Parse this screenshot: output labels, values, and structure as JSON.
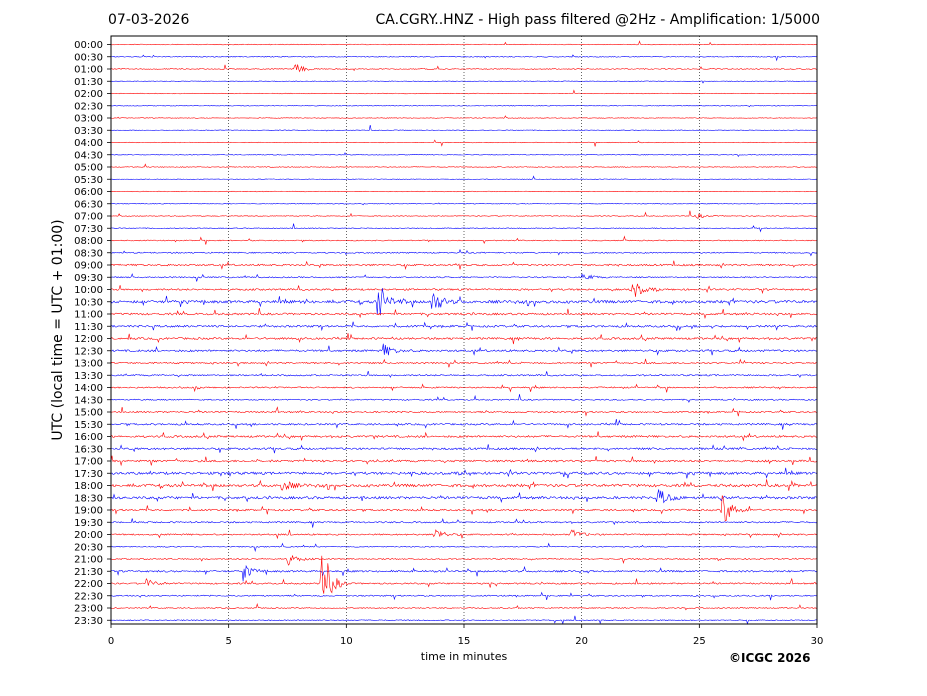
{
  "header": {
    "date": "07-03-2026",
    "title": "CA.CGRY..HNZ - High pass filtered @2Hz - Amplification: 1/5000"
  },
  "credit": "©ICGC 2026",
  "chart_data": {
    "type": "line",
    "title": "CA.CGRY..HNZ - High pass filtered @2Hz - Amplification: 1/5000",
    "xlabel": "time in minutes",
    "ylabel": "UTC (local time = UTC + 01:00)",
    "xlim": [
      0,
      30
    ],
    "x_ticks": [
      0,
      5,
      10,
      15,
      20,
      25,
      30
    ],
    "row_labels": [
      "00:00",
      "00:30",
      "01:00",
      "01:30",
      "02:00",
      "02:30",
      "03:00",
      "03:30",
      "04:00",
      "04:30",
      "05:00",
      "05:30",
      "06:00",
      "06:30",
      "07:00",
      "07:30",
      "08:00",
      "08:30",
      "09:00",
      "09:30",
      "10:00",
      "10:30",
      "11:00",
      "11:30",
      "12:00",
      "12:30",
      "13:00",
      "13:30",
      "14:00",
      "14:30",
      "15:00",
      "15:30",
      "16:00",
      "16:30",
      "17:00",
      "17:30",
      "18:00",
      "18:30",
      "19:00",
      "19:30",
      "20:00",
      "20:30",
      "21:00",
      "21:30",
      "22:00",
      "22:30",
      "23:00",
      "23:30"
    ],
    "trace_colors": [
      "#ff0000",
      "#0000ff"
    ],
    "row_activity": [
      0.1,
      0.15,
      0.15,
      0.05,
      0.05,
      0.05,
      0.05,
      0.05,
      0.05,
      0.1,
      0.1,
      0.05,
      0.05,
      0.05,
      0.1,
      0.15,
      0.2,
      0.3,
      0.5,
      0.3,
      0.5,
      0.9,
      0.6,
      0.6,
      0.6,
      0.6,
      0.4,
      0.4,
      0.35,
      0.3,
      0.4,
      0.5,
      0.6,
      0.6,
      0.6,
      0.8,
      0.9,
      0.8,
      0.5,
      0.4,
      0.4,
      0.2,
      0.3,
      0.5,
      0.4,
      0.3,
      0.2,
      0.2
    ],
    "events": [
      {
        "row": 2,
        "x": 7.9,
        "amp": 0.6
      },
      {
        "row": 14,
        "x": 24.9,
        "amp": 0.4
      },
      {
        "row": 19,
        "x": 20.1,
        "amp": 0.5
      },
      {
        "row": 20,
        "x": 22.2,
        "amp": 1.2
      },
      {
        "row": 21,
        "x": 11.4,
        "amp": 2.2
      },
      {
        "row": 21,
        "x": 13.7,
        "amp": 1.6
      },
      {
        "row": 25,
        "x": 11.6,
        "amp": 0.9
      },
      {
        "row": 36,
        "x": 7.3,
        "amp": 0.8
      },
      {
        "row": 37,
        "x": 23.3,
        "amp": 1.2
      },
      {
        "row": 38,
        "x": 26.0,
        "amp": 2.4
      },
      {
        "row": 40,
        "x": 13.8,
        "amp": 0.8
      },
      {
        "row": 40,
        "x": 19.6,
        "amp": 0.7
      },
      {
        "row": 42,
        "x": 7.5,
        "amp": 0.9
      },
      {
        "row": 43,
        "x": 5.7,
        "amp": 0.8
      },
      {
        "row": 44,
        "x": 9.0,
        "amp": 4.0
      },
      {
        "row": 44,
        "x": 1.5,
        "amp": 0.6
      }
    ]
  }
}
